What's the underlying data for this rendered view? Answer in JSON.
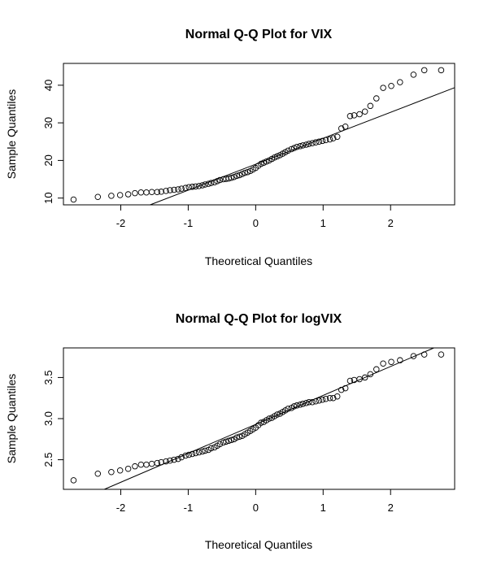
{
  "chart_data": [
    {
      "type": "scatter",
      "title": "Normal Q-Q Plot for VIX",
      "xlabel": "Theoretical Quantiles",
      "ylabel": "Sample Quantiles",
      "xlim": [
        -2.85,
        2.95
      ],
      "ylim": [
        8.2,
        45.8
      ],
      "xticks": [
        -2,
        -1,
        0,
        1,
        2
      ],
      "yticks": [
        10,
        20,
        30,
        40
      ],
      "qq_line": {
        "slope": 6.9,
        "intercept": 19.0
      },
      "points": [
        [
          -2.7,
          9.6
        ],
        [
          -2.34,
          10.3
        ],
        [
          -2.14,
          10.6
        ],
        [
          -2.01,
          10.8
        ],
        [
          -1.89,
          11.0
        ],
        [
          -1.79,
          11.3
        ],
        [
          -1.7,
          11.5
        ],
        [
          -1.62,
          11.5
        ],
        [
          -1.54,
          11.6
        ],
        [
          -1.46,
          11.6
        ],
        [
          -1.4,
          11.7
        ],
        [
          -1.33,
          11.9
        ],
        [
          -1.27,
          12.1
        ],
        [
          -1.21,
          12.2
        ],
        [
          -1.15,
          12.3
        ],
        [
          -1.1,
          12.5
        ],
        [
          -1.04,
          12.7
        ],
        [
          -0.99,
          12.9
        ],
        [
          -0.94,
          13.0
        ],
        [
          -0.89,
          13.1
        ],
        [
          -0.84,
          13.2
        ],
        [
          -0.79,
          13.4
        ],
        [
          -0.75,
          13.6
        ],
        [
          -0.7,
          13.8
        ],
        [
          -0.66,
          14.0
        ],
        [
          -0.61,
          14.2
        ],
        [
          -0.57,
          14.5
        ],
        [
          -0.53,
          14.8
        ],
        [
          -0.48,
          15.0
        ],
        [
          -0.44,
          15.1
        ],
        [
          -0.4,
          15.2
        ],
        [
          -0.36,
          15.4
        ],
        [
          -0.32,
          15.6
        ],
        [
          -0.28,
          15.9
        ],
        [
          -0.24,
          16.1
        ],
        [
          -0.2,
          16.4
        ],
        [
          -0.16,
          16.7
        ],
        [
          -0.12,
          16.9
        ],
        [
          -0.08,
          17.2
        ],
        [
          -0.04,
          17.6
        ],
        [
          0.0,
          18.0
        ],
        [
          0.04,
          18.6
        ],
        [
          0.08,
          19.1
        ],
        [
          0.12,
          19.4
        ],
        [
          0.16,
          19.7
        ],
        [
          0.2,
          20.0
        ],
        [
          0.24,
          20.4
        ],
        [
          0.28,
          20.8
        ],
        [
          0.32,
          21.1
        ],
        [
          0.36,
          21.4
        ],
        [
          0.4,
          21.8
        ],
        [
          0.44,
          22.2
        ],
        [
          0.48,
          22.6
        ],
        [
          0.53,
          23.0
        ],
        [
          0.57,
          23.3
        ],
        [
          0.61,
          23.6
        ],
        [
          0.66,
          23.8
        ],
        [
          0.7,
          24.0
        ],
        [
          0.75,
          24.2
        ],
        [
          0.79,
          24.4
        ],
        [
          0.84,
          24.6
        ],
        [
          0.89,
          24.8
        ],
        [
          0.94,
          25.0
        ],
        [
          0.99,
          25.2
        ],
        [
          1.04,
          25.4
        ],
        [
          1.1,
          25.6
        ],
        [
          1.15,
          25.9
        ],
        [
          1.21,
          26.3
        ],
        [
          1.27,
          28.5
        ],
        [
          1.33,
          29.0
        ],
        [
          1.4,
          31.8
        ],
        [
          1.46,
          32.0
        ],
        [
          1.54,
          32.3
        ],
        [
          1.62,
          33.0
        ],
        [
          1.7,
          34.5
        ],
        [
          1.79,
          36.5
        ],
        [
          1.89,
          39.3
        ],
        [
          2.01,
          39.8
        ],
        [
          2.14,
          40.8
        ],
        [
          2.34,
          42.8
        ],
        [
          2.5,
          44.0
        ],
        [
          2.75,
          44.0
        ]
      ]
    },
    {
      "type": "scatter",
      "title": "Normal Q-Q Plot for logVIX",
      "xlabel": "Theoretical Quantiles",
      "ylabel": "Sample Quantiles",
      "xlim": [
        -2.85,
        2.95
      ],
      "ylim": [
        2.14,
        3.86
      ],
      "xticks": [
        -2,
        -1,
        0,
        1,
        2
      ],
      "yticks": [
        2.5,
        3.0,
        3.5
      ],
      "ytick_labels": [
        "2.5",
        "3.0",
        "3.5"
      ],
      "qq_line": {
        "slope": 0.352,
        "intercept": 2.93
      },
      "points": [
        [
          -2.7,
          2.25
        ],
        [
          -2.34,
          2.33
        ],
        [
          -2.14,
          2.35
        ],
        [
          -2.01,
          2.37
        ],
        [
          -1.89,
          2.39
        ],
        [
          -1.79,
          2.42
        ],
        [
          -1.7,
          2.44
        ],
        [
          -1.62,
          2.44
        ],
        [
          -1.54,
          2.45
        ],
        [
          -1.46,
          2.46
        ],
        [
          -1.4,
          2.47
        ],
        [
          -1.33,
          2.48
        ],
        [
          -1.27,
          2.49
        ],
        [
          -1.21,
          2.5
        ],
        [
          -1.15,
          2.51
        ],
        [
          -1.1,
          2.53
        ],
        [
          -1.04,
          2.55
        ],
        [
          -0.99,
          2.56
        ],
        [
          -0.94,
          2.57
        ],
        [
          -0.89,
          2.58
        ],
        [
          -0.84,
          2.59
        ],
        [
          -0.79,
          2.6
        ],
        [
          -0.75,
          2.61
        ],
        [
          -0.7,
          2.62
        ],
        [
          -0.66,
          2.64
        ],
        [
          -0.61,
          2.65
        ],
        [
          -0.57,
          2.67
        ],
        [
          -0.53,
          2.69
        ],
        [
          -0.48,
          2.71
        ],
        [
          -0.44,
          2.72
        ],
        [
          -0.4,
          2.73
        ],
        [
          -0.36,
          2.74
        ],
        [
          -0.32,
          2.75
        ],
        [
          -0.28,
          2.77
        ],
        [
          -0.24,
          2.78
        ],
        [
          -0.2,
          2.79
        ],
        [
          -0.16,
          2.81
        ],
        [
          -0.12,
          2.83
        ],
        [
          -0.08,
          2.85
        ],
        [
          -0.04,
          2.87
        ],
        [
          0.0,
          2.89
        ],
        [
          0.04,
          2.92
        ],
        [
          0.08,
          2.95
        ],
        [
          0.12,
          2.96
        ],
        [
          0.16,
          2.98
        ],
        [
          0.2,
          3.0
        ],
        [
          0.24,
          3.01
        ],
        [
          0.28,
          3.03
        ],
        [
          0.32,
          3.05
        ],
        [
          0.36,
          3.06
        ],
        [
          0.4,
          3.08
        ],
        [
          0.44,
          3.1
        ],
        [
          0.48,
          3.12
        ],
        [
          0.53,
          3.13
        ],
        [
          0.57,
          3.15
        ],
        [
          0.61,
          3.16
        ],
        [
          0.66,
          3.17
        ],
        [
          0.7,
          3.18
        ],
        [
          0.75,
          3.19
        ],
        [
          0.79,
          3.2
        ],
        [
          0.84,
          3.2
        ],
        [
          0.89,
          3.21
        ],
        [
          0.94,
          3.22
        ],
        [
          0.99,
          3.23
        ],
        [
          1.04,
          3.24
        ],
        [
          1.1,
          3.25
        ],
        [
          1.15,
          3.25
        ],
        [
          1.21,
          3.27
        ],
        [
          1.27,
          3.35
        ],
        [
          1.33,
          3.37
        ],
        [
          1.4,
          3.46
        ],
        [
          1.46,
          3.47
        ],
        [
          1.54,
          3.48
        ],
        [
          1.62,
          3.5
        ],
        [
          1.7,
          3.54
        ],
        [
          1.79,
          3.6
        ],
        [
          1.89,
          3.67
        ],
        [
          2.01,
          3.69
        ],
        [
          2.14,
          3.71
        ],
        [
          2.34,
          3.76
        ],
        [
          2.5,
          3.78
        ],
        [
          2.75,
          3.78
        ]
      ]
    }
  ]
}
